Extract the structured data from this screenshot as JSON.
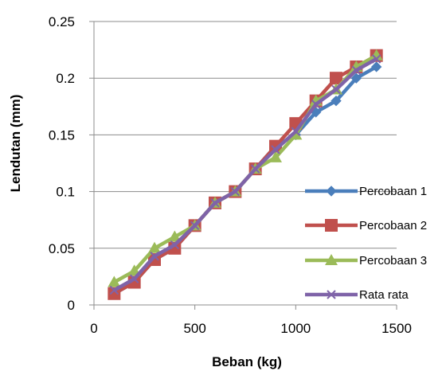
{
  "chart_data": {
    "type": "line",
    "title": "",
    "xlabel": "Beban (kg)",
    "ylabel": "Lendutan (mm)",
    "xlim": [
      0,
      1500
    ],
    "ylim": [
      0,
      0.25
    ],
    "x_ticks": [
      "0",
      "500",
      "1000",
      "1500"
    ],
    "y_ticks": [
      "0",
      "0.05",
      "0.1",
      "0.15",
      "0.2",
      "0.25"
    ],
    "x_tick_values": [
      0,
      500,
      1000,
      1500
    ],
    "y_tick_values": [
      0,
      0.05,
      0.1,
      0.15,
      0.2,
      0.25
    ],
    "grid": "horizontal",
    "legend_position": "right",
    "x": [
      100,
      200,
      300,
      400,
      500,
      600,
      700,
      800,
      900,
      1000,
      1100,
      1200,
      1300,
      1400
    ],
    "series": [
      {
        "name": "Percobaan 1",
        "marker": "diamond",
        "color": "#4a7ebb",
        "values": [
          0.01,
          0.02,
          0.04,
          0.05,
          0.07,
          0.09,
          0.1,
          0.12,
          0.14,
          0.15,
          0.17,
          0.18,
          0.2,
          0.21
        ]
      },
      {
        "name": "Percobaan 2",
        "marker": "square",
        "color": "#c0504d",
        "values": [
          0.01,
          0.02,
          0.04,
          0.05,
          0.07,
          0.09,
          0.1,
          0.12,
          0.14,
          0.16,
          0.18,
          0.2,
          0.21,
          0.22
        ]
      },
      {
        "name": "Percobaan 3",
        "marker": "triangle",
        "color": "#9bbb59",
        "values": [
          0.02,
          0.03,
          0.05,
          0.06,
          0.07,
          0.09,
          0.1,
          0.12,
          0.13,
          0.15,
          0.18,
          0.19,
          0.21,
          0.22
        ]
      },
      {
        "name": "Rata rata",
        "marker": "x",
        "color": "#7f63a8",
        "values": [
          0.013,
          0.023,
          0.043,
          0.053,
          0.07,
          0.09,
          0.1,
          0.12,
          0.137,
          0.153,
          0.177,
          0.19,
          0.207,
          0.217
        ]
      }
    ]
  }
}
